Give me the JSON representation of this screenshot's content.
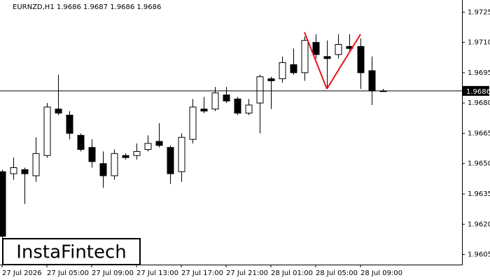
{
  "chart_data": {
    "type": "candlestick",
    "title": "EURNZD,H1  1.9686 1.9687 1.9686 1.9686",
    "watermark": "InstaFintech",
    "categories": [
      "27 Jul 2026",
      null,
      null,
      null,
      "27 Jul 05:00",
      null,
      null,
      null,
      "27 Jul 09:00",
      null,
      null,
      null,
      "27 Jul 13:00",
      null,
      null,
      null,
      "27 Jul 17:00",
      null,
      null,
      null,
      "27 Jul 21:00",
      null,
      null,
      null,
      "28 Jul 01:00",
      null,
      null,
      null,
      "28 Jul 05:00",
      null,
      null,
      null,
      "28 Jul 09:00",
      null,
      null
    ],
    "open": [
      1.9646,
      1.9645,
      1.9647,
      1.9644,
      1.9654,
      1.9677,
      1.9674,
      1.9664,
      1.9658,
      1.965,
      1.9644,
      1.9654,
      1.9654,
      1.9657,
      1.9661,
      1.9658,
      1.9646,
      1.9662,
      1.9677,
      1.9677,
      1.9684,
      1.9682,
      1.9675,
      1.968,
      1.9692,
      1.9692,
      1.9699,
      1.9695,
      1.971,
      1.9703,
      1.9704,
      1.9708,
      1.9708,
      1.9696,
      1.9686
    ],
    "high": [
      1.9647,
      1.9653,
      1.9648,
      1.9663,
      1.968,
      1.9694,
      1.9676,
      1.9665,
      1.9662,
      1.9656,
      1.9657,
      1.9655,
      1.966,
      1.9664,
      1.967,
      1.9659,
      1.9665,
      1.9682,
      1.9683,
      1.9688,
      1.9688,
      1.9683,
      1.9682,
      1.9694,
      1.9693,
      1.9703,
      1.9707,
      1.9713,
      1.9714,
      1.9711,
      1.9714,
      1.9714,
      1.9712,
      1.9703,
      1.9687
    ],
    "low": [
      1.9613,
      1.9642,
      1.963,
      1.9641,
      1.9653,
      1.9674,
      1.9662,
      1.9656,
      1.9648,
      1.9638,
      1.9642,
      1.9652,
      1.9652,
      1.9656,
      1.9658,
      1.964,
      1.9641,
      1.966,
      1.9675,
      1.9676,
      1.968,
      1.9674,
      1.9674,
      1.9665,
      1.9677,
      1.969,
      1.9694,
      1.9691,
      1.9702,
      1.9687,
      1.9702,
      1.9706,
      1.9687,
      1.9679,
      1.9686
    ],
    "close": [
      1.9614,
      1.9648,
      1.9645,
      1.9655,
      1.9678,
      1.9675,
      1.9665,
      1.9657,
      1.9651,
      1.9644,
      1.9655,
      1.9653,
      1.9656,
      1.966,
      1.9659,
      1.9645,
      1.9663,
      1.9678,
      1.9676,
      1.9685,
      1.9681,
      1.9675,
      1.9679,
      1.9693,
      1.9691,
      1.97,
      1.9695,
      1.9711,
      1.9704,
      1.9702,
      1.9709,
      1.9707,
      1.9695,
      1.9686,
      1.9686
    ],
    "current_price": 1.9686,
    "pattern": {
      "color": "#e8141c",
      "points": [
        {
          "index": 27,
          "value": 1.9715
        },
        {
          "index": 29,
          "value": 1.9687
        },
        {
          "index": 32,
          "value": 1.9714
        }
      ]
    },
    "ylim": [
      1.96,
      1.9731
    ],
    "yticks": [
      {
        "value": 1.9605,
        "label": "1.9605"
      },
      {
        "value": 1.962,
        "label": "1.9620"
      },
      {
        "value": 1.9635,
        "label": "1.9635"
      },
      {
        "value": 1.965,
        "label": "1.9650"
      },
      {
        "value": 1.9665,
        "label": "1.9665"
      },
      {
        "value": 1.968,
        "label": "1.9680"
      },
      {
        "value": 1.9695,
        "label": "1.9695"
      },
      {
        "value": 1.971,
        "label": "1.9710"
      },
      {
        "value": 1.9725,
        "label": "1.9725"
      }
    ]
  }
}
